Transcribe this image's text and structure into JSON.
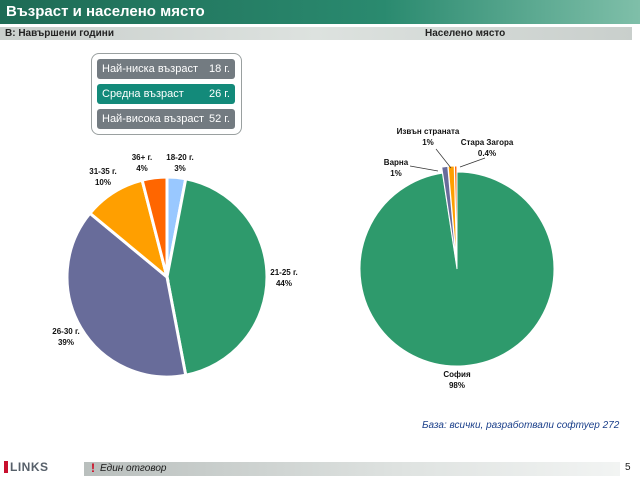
{
  "header": {
    "title": "Възраст и населено място"
  },
  "subheader": {
    "left": "В: Навършени години",
    "right": "Населено място"
  },
  "age_summary": {
    "min": {
      "label": "Най-ниска възраст",
      "value": "18 г."
    },
    "avg": {
      "label": "Средна възраст",
      "value": "26 г."
    },
    "max": {
      "label": "Най-висока възраст",
      "value": "52 г."
    }
  },
  "chart_data": [
    {
      "type": "pie",
      "title": "",
      "slices": [
        {
          "label": "18-20 г.",
          "display": "3%",
          "value": 3,
          "color": "#99c8ff"
        },
        {
          "label": "21-25 г.",
          "display": "44%",
          "value": 44,
          "color": "#2e9a6c"
        },
        {
          "label": "26-30 г.",
          "display": "39%",
          "value": 39,
          "color": "#686c9a"
        },
        {
          "label": "31-35 г.",
          "display": "10%",
          "value": 10,
          "color": "#ff9f00"
        },
        {
          "label": "36+ г.",
          "display": "4%",
          "value": 4,
          "color": "#ff6600"
        }
      ]
    },
    {
      "type": "pie",
      "title": "",
      "slices": [
        {
          "label": "София",
          "display": "98%",
          "value": 97.6,
          "color": "#2e9a6c"
        },
        {
          "label": "Варна",
          "display": "1%",
          "value": 1,
          "color": "#686c9a"
        },
        {
          "label": "Извън страната",
          "display": "1%",
          "value": 1,
          "color": "#ff9f00"
        },
        {
          "label": "Стара Загора",
          "display": "0.4%",
          "value": 0.4,
          "color": "#ff6600"
        }
      ]
    }
  ],
  "base_note": "База: всички, разработвали софтуер 272",
  "footer": {
    "mark": "!",
    "text": "Един отговор"
  },
  "page_number": "5",
  "logo": {
    "text": "LINKS"
  }
}
